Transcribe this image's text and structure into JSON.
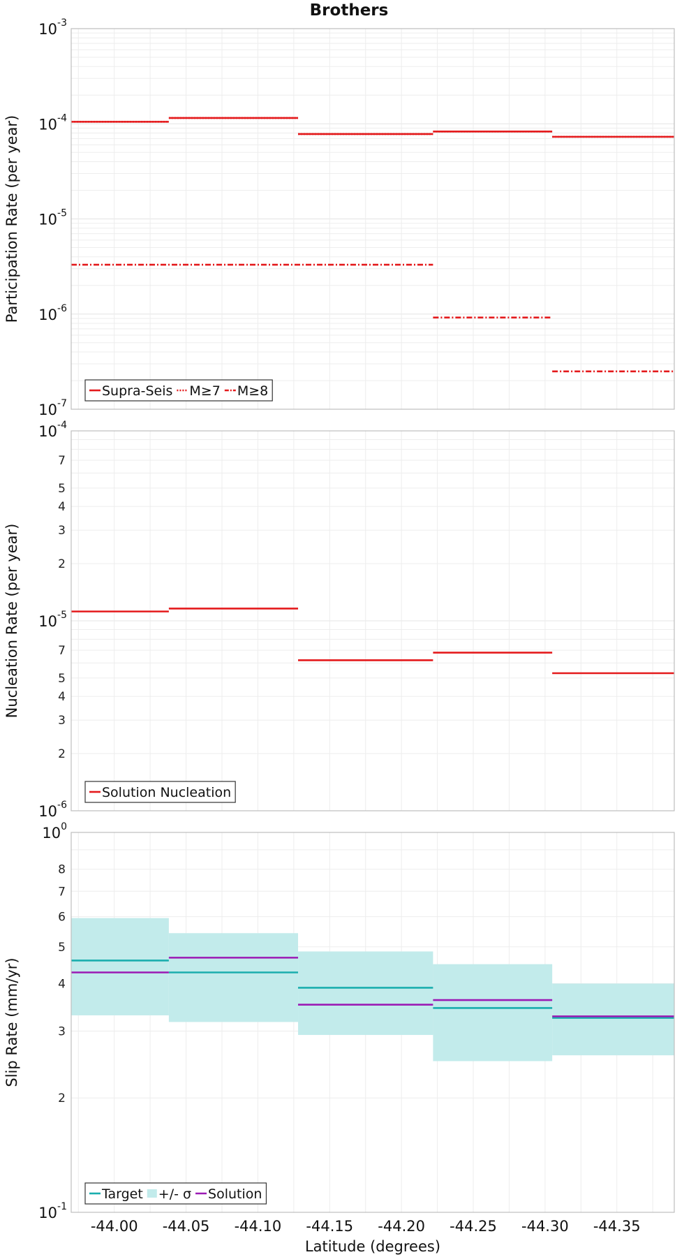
{
  "title": "Brothers",
  "xlabel": "Latitude (degrees)",
  "x_ticks": [
    "-44.00",
    "-44.05",
    "-44.10",
    "-44.15",
    "-44.20",
    "-44.25",
    "-44.30",
    "-44.35"
  ],
  "chart_data": [
    {
      "type": "line",
      "title": "Brothers",
      "ylabel": "Participation Rate (per year)",
      "yscale": "log",
      "ylim": [
        1e-07,
        0.001
      ],
      "xlim": [
        -43.97,
        -44.39
      ],
      "y_ticks": [
        {
          "base": "10",
          "exp": "-7"
        },
        {
          "base": "10",
          "exp": "-6"
        },
        {
          "base": "10",
          "exp": "-5"
        },
        {
          "base": "10",
          "exp": "-4"
        },
        {
          "base": "10",
          "exp": "-3"
        }
      ],
      "legend_position": "bottom-left",
      "series": [
        {
          "name": "Supra-Seis",
          "color": "#e41a1c",
          "style": "solid",
          "segments": [
            [
              -43.97,
              -44.038,
              0.000105
            ],
            [
              -44.038,
              -44.128,
              0.000115
            ],
            [
              -44.128,
              -44.222,
              7.8e-05
            ],
            [
              -44.222,
              -44.305,
              8.3e-05
            ],
            [
              -44.305,
              -44.39,
              7.3e-05
            ]
          ]
        },
        {
          "name": "M≥7",
          "color": "#e41a1c",
          "style": "dotted",
          "segments": [
            [
              -43.97,
              -44.038,
              0.000105
            ],
            [
              -44.038,
              -44.128,
              0.000115
            ],
            [
              -44.128,
              -44.222,
              7.8e-05
            ],
            [
              -44.222,
              -44.305,
              8.3e-05
            ],
            [
              -44.305,
              -44.39,
              7.3e-05
            ]
          ]
        },
        {
          "name": "M≥8",
          "color": "#e41a1c",
          "style": "dashdot",
          "segments": [
            [
              -43.97,
              -44.222,
              3.3e-06
            ],
            [
              -44.222,
              -44.305,
              9.2e-07
            ],
            [
              -44.305,
              -44.39,
              2.5e-07
            ]
          ]
        }
      ]
    },
    {
      "type": "line",
      "ylabel": "Nucleation Rate (per year)",
      "yscale": "log",
      "ylim": [
        1e-06,
        0.0001
      ],
      "y_ticks": [
        {
          "base": "10",
          "exp": "-6"
        },
        {
          "base": "10",
          "exp": "-5"
        },
        {
          "base": "10",
          "exp": "-4"
        }
      ],
      "y_minor_labels": [
        "2",
        "3",
        "4",
        "5",
        "7",
        "2",
        "3",
        "4",
        "5",
        "7"
      ],
      "legend_position": "bottom-left",
      "series": [
        {
          "name": "Solution Nucleation",
          "color": "#e41a1c",
          "style": "solid",
          "segments": [
            [
              -43.97,
              -44.038,
              1.12e-05
            ],
            [
              -44.038,
              -44.128,
              1.16e-05
            ],
            [
              -44.128,
              -44.222,
              6.2e-06
            ],
            [
              -44.222,
              -44.305,
              6.8e-06
            ],
            [
              -44.305,
              -44.39,
              5.3e-06
            ]
          ]
        }
      ]
    },
    {
      "type": "line",
      "ylabel": "Slip Rate (mm/yr)",
      "yscale": "log",
      "ylim": [
        0.1,
        1
      ],
      "y_ticks": [
        {
          "base": "10",
          "exp": "-1"
        },
        {
          "base": "10",
          "exp": "0"
        }
      ],
      "y_minor_labels": [
        "2",
        "3",
        "4",
        "5",
        "6",
        "7",
        "8"
      ],
      "legend_position": "bottom-left",
      "series": [
        {
          "name": "Target",
          "color": "#1aaeae",
          "style": "solid",
          "segments": [
            [
              -43.97,
              -44.038,
              0.46
            ],
            [
              -44.038,
              -44.128,
              0.428
            ],
            [
              -44.128,
              -44.222,
              0.39
            ],
            [
              -44.222,
              -44.305,
              0.345
            ],
            [
              -44.305,
              -44.39,
              0.325
            ]
          ]
        },
        {
          "name": "+/- σ",
          "color": "#c2ebeb",
          "style": "band",
          "segments": [
            [
              -43.97,
              -44.038,
              0.33,
              0.595
            ],
            [
              -44.038,
              -44.128,
              0.317,
              0.543
            ],
            [
              -44.128,
              -44.222,
              0.293,
              0.486
            ],
            [
              -44.222,
              -44.305,
              0.25,
              0.45
            ],
            [
              -44.305,
              -44.39,
              0.259,
              0.4
            ]
          ]
        },
        {
          "name": "Solution",
          "color": "#9b1ab4",
          "style": "solid",
          "segments": [
            [
              -43.97,
              -44.038,
              0.428
            ],
            [
              -44.038,
              -44.128,
              0.468
            ],
            [
              -44.128,
              -44.222,
              0.352
            ],
            [
              -44.222,
              -44.305,
              0.362
            ],
            [
              -44.305,
              -44.39,
              0.328
            ]
          ]
        }
      ]
    }
  ]
}
